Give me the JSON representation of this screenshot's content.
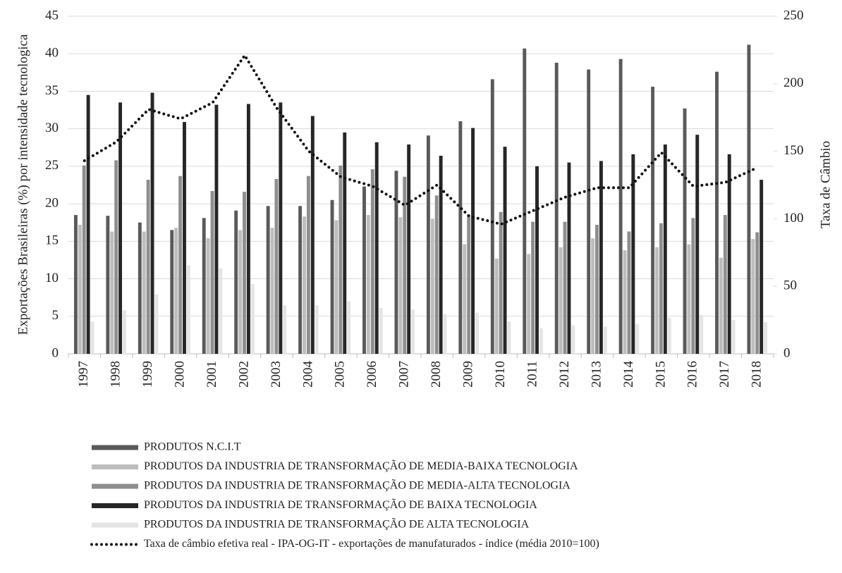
{
  "chart_data": {
    "type": "bar",
    "y_label": "Exportações Brasileiras (%) por intensidade tecnologica",
    "y2_label": "Taxa de Câmbio",
    "categories": [
      "1997",
      "1998",
      "1999",
      "2000",
      "2001",
      "2002",
      "2003",
      "2004",
      "2005",
      "2006",
      "2007",
      "2008",
      "2009",
      "2010",
      "2011",
      "2012",
      "2013",
      "2014",
      "2015",
      "2016",
      "2017",
      "2018"
    ],
    "ylim": [
      0,
      45
    ],
    "yticks": [
      0,
      5,
      10,
      15,
      20,
      25,
      30,
      35,
      40,
      45
    ],
    "y2lim": [
      0,
      250
    ],
    "y2ticks": [
      0,
      50,
      100,
      150,
      200,
      250
    ],
    "series": [
      {
        "name": "PRODUTOS N.C.I.T",
        "color": "#5a5a5a",
        "values": [
          18.5,
          18.4,
          17.5,
          16.5,
          18.1,
          19.1,
          19.7,
          19.7,
          20.5,
          22.3,
          24.4,
          29.1,
          31.0,
          36.6,
          40.7,
          38.8,
          37.9,
          39.3,
          35.6,
          32.7,
          37.6,
          41.2
        ]
      },
      {
        "name": "PRODUTOS DA INDUSTRIA DE TRANSFORMAÇÃO DE MEDIA-BAIXA TECNOLOGIA",
        "color": "#bdbdbd",
        "values": [
          17.2,
          16.3,
          16.3,
          16.8,
          15.4,
          16.5,
          16.8,
          18.3,
          17.8,
          18.5,
          18.2,
          18.0,
          14.6,
          12.7,
          13.3,
          14.2,
          15.4,
          13.8,
          14.2,
          14.6,
          12.8,
          15.3
        ]
      },
      {
        "name": "PRODUTOS DA INDUSTRIA DE TRANSFORMAÇÃO DE MEDIA-ALTA TECNOLOGIA",
        "color": "#8e8e8e",
        "values": [
          25.1,
          25.8,
          23.2,
          23.7,
          21.7,
          21.6,
          23.3,
          23.7,
          25.1,
          24.6,
          23.6,
          21.1,
          18.5,
          18.9,
          17.6,
          17.6,
          17.2,
          16.3,
          17.4,
          18.1,
          18.5,
          16.2
        ]
      },
      {
        "name": "PRODUTOS DA INDUSTRIA DE TRANSFORMAÇÃO DE BAIXA TECNOLOGIA",
        "color": "#262626",
        "values": [
          34.5,
          33.5,
          34.8,
          30.9,
          33.2,
          33.3,
          33.5,
          31.7,
          29.5,
          28.2,
          27.9,
          26.4,
          30.1,
          27.6,
          25.0,
          25.5,
          25.7,
          26.6,
          27.9,
          29.2,
          26.6,
          23.2
        ]
      },
      {
        "name": "PRODUTOS DA INDUSTRIA DE TRANSFORMAÇÃO DE ALTA TECNOLOGIA",
        "color": "#e4e4e4",
        "values": [
          4.3,
          5.8,
          7.9,
          11.8,
          11.4,
          9.3,
          6.5,
          6.5,
          7.0,
          6.1,
          5.9,
          5.3,
          5.5,
          4.3,
          3.4,
          3.8,
          3.6,
          4.0,
          4.8,
          5.2,
          4.5,
          4.2
        ]
      },
      {
        "name": "Taxa de câmbio efetiva real - IPA-OG-IT - exportações de manufaturados - índice (média 2010=100)",
        "color": "#111111",
        "type": "line",
        "axis": "y2",
        "values": [
          143,
          157,
          181,
          174,
          186,
          221,
          182,
          150,
          131,
          124,
          110,
          125,
          102,
          96,
          106,
          116,
          123,
          123,
          149,
          124,
          127,
          138
        ]
      }
    ]
  }
}
